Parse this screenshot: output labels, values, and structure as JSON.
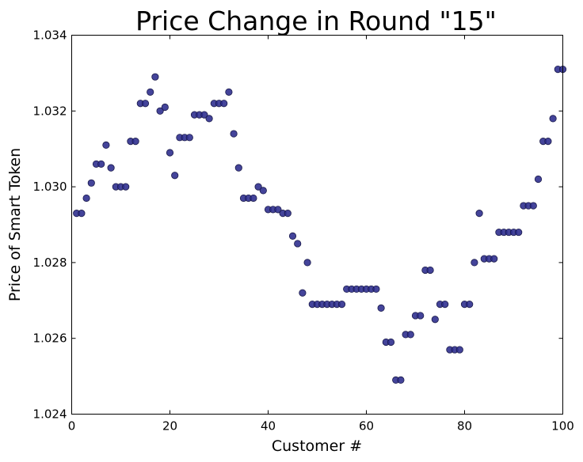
{
  "chart_data": {
    "type": "scatter",
    "title": "Price Change in Round \"15\"",
    "xlabel": "Customer #",
    "ylabel": "Price of Smart Token",
    "xlim": [
      0,
      100
    ],
    "ylim": [
      1.024,
      1.034
    ],
    "xticks": [
      0,
      20,
      40,
      60,
      80,
      100
    ],
    "xtick_labels": [
      "0",
      "20",
      "40",
      "60",
      "80",
      "100"
    ],
    "yticks": [
      1.024,
      1.026,
      1.028,
      1.03,
      1.032,
      1.034
    ],
    "ytick_labels": [
      "1.024",
      "1.026",
      "1.028",
      "1.030",
      "1.032",
      "1.034"
    ],
    "grid": false,
    "marker_color": "#2a2a8c",
    "series": [
      {
        "x": [
          1,
          2,
          3,
          4,
          5,
          6,
          7,
          8,
          9,
          10,
          11,
          12,
          13,
          14,
          15,
          16,
          17,
          18,
          19,
          20,
          21,
          22,
          23,
          24,
          25,
          26,
          27,
          28,
          29,
          30,
          31,
          32,
          33,
          34,
          35,
          36,
          37,
          38,
          39,
          40,
          41,
          42,
          43,
          44,
          45,
          46,
          47,
          48,
          49,
          50,
          51,
          52,
          53,
          54,
          55,
          56,
          57,
          58,
          59,
          60,
          61,
          62,
          63,
          64,
          65,
          66,
          67,
          68,
          69,
          70,
          71,
          72,
          73,
          74,
          75,
          76,
          77,
          78,
          79,
          80,
          81,
          82,
          83,
          84,
          85,
          86,
          87,
          88,
          89,
          90,
          91,
          92,
          93,
          94,
          95,
          96,
          97,
          98,
          99,
          100
        ],
        "y": [
          1.0293,
          1.0293,
          1.0297,
          1.0301,
          1.0306,
          1.0306,
          1.0311,
          1.0305,
          1.03,
          1.03,
          1.03,
          1.0312,
          1.0312,
          1.0322,
          1.0322,
          1.0325,
          1.0329,
          1.032,
          1.0321,
          1.0309,
          1.0303,
          1.0313,
          1.0313,
          1.0313,
          1.0319,
          1.0319,
          1.0319,
          1.0318,
          1.0322,
          1.0322,
          1.0322,
          1.0325,
          1.0314,
          1.0305,
          1.0297,
          1.0297,
          1.0297,
          1.03,
          1.0299,
          1.0294,
          1.0294,
          1.0294,
          1.0293,
          1.0293,
          1.0287,
          1.0285,
          1.0272,
          1.028,
          1.0269,
          1.0269,
          1.0269,
          1.0269,
          1.0269,
          1.0269,
          1.0269,
          1.0273,
          1.0273,
          1.0273,
          1.0273,
          1.0273,
          1.0273,
          1.0273,
          1.0268,
          1.0259,
          1.0259,
          1.0249,
          1.0249,
          1.0261,
          1.0261,
          1.0266,
          1.0266,
          1.0278,
          1.0278,
          1.0265,
          1.0269,
          1.0269,
          1.0257,
          1.0257,
          1.0257,
          1.0269,
          1.0269,
          1.028,
          1.0293,
          1.0281,
          1.0281,
          1.0281,
          1.0288,
          1.0288,
          1.0288,
          1.0288,
          1.0288,
          1.0295,
          1.0295,
          1.0295,
          1.0302,
          1.0312,
          1.0312,
          1.0318,
          1.0331,
          1.0331
        ]
      }
    ]
  }
}
